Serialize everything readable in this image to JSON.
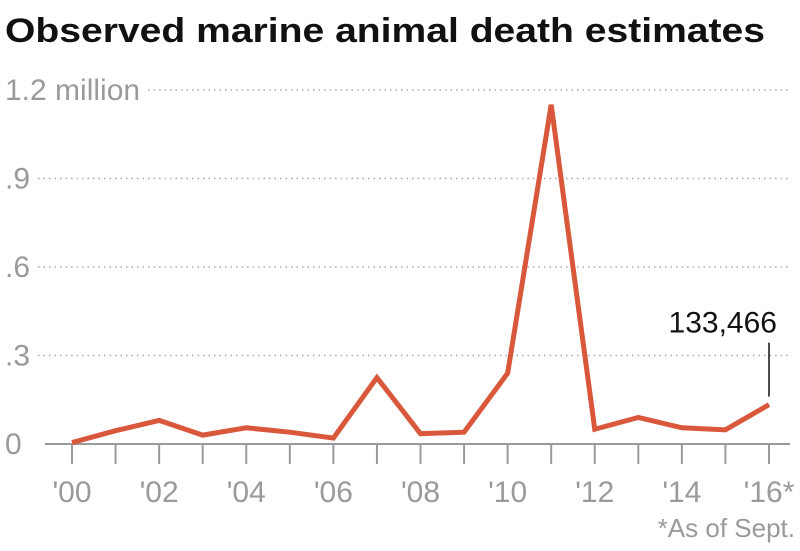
{
  "chart_data": {
    "type": "line",
    "title": "Observed marine animal death estimates",
    "categories": [
      "'00",
      null,
      "'02",
      null,
      "'04",
      null,
      "'06",
      null,
      "'08",
      null,
      "'10",
      null,
      "'12",
      null,
      "'14",
      null,
      "'16*"
    ],
    "series": [
      {
        "color": "#d9583b",
        "values": [
          0.005,
          0.045,
          0.08,
          0.03,
          0.055,
          0.04,
          0.02,
          0.225,
          0.035,
          0.04,
          0.24,
          1.15,
          0.05,
          0.09,
          0.055,
          0.048,
          0.133466
        ],
        "value_labels": [
          null,
          null,
          null,
          null,
          null,
          null,
          null,
          null,
          null,
          null,
          null,
          null,
          null,
          null,
          null,
          null,
          "133,466"
        ]
      }
    ],
    "ylim": [
      0,
      1.2
    ],
    "yticks": [
      0,
      {
        "value": 0.3,
        "label": ".3"
      },
      {
        "value": 0.6,
        "label": ".6"
      },
      {
        "value": 0.9,
        "label": ".9"
      },
      {
        "value": 1.2,
        "label": "1.2 million"
      }
    ],
    "grid": true,
    "footnote": "*As of Sept."
  }
}
